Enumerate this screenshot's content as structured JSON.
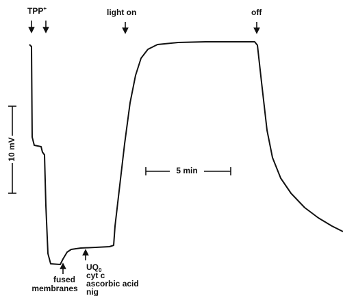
{
  "labels": {
    "tpp": "TPP",
    "tpp_charge": "+",
    "light_on": "light on",
    "off": "off",
    "voltage_scale": "10 mV",
    "time_scale": "5 min",
    "fused_1": "fused",
    "fused_2": "membranes",
    "uq": "UQ",
    "uq_sub": "0",
    "cyt": "cyt c",
    "asc": "ascorbic acid",
    "nig": "nig"
  }
}
